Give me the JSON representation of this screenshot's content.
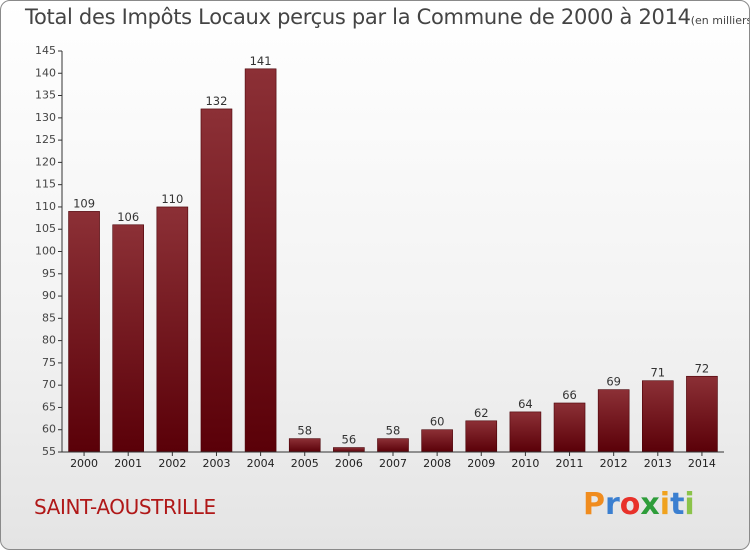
{
  "title": "Total des Impôts Locaux perçus par la Commune de 2000 à 2014",
  "unit_note": "(en milliers d'€)",
  "commune": "SAINT-AOUSTRILLE",
  "logo": {
    "letters": [
      "P",
      "r",
      "o",
      "x",
      "i",
      "t",
      "i"
    ],
    "colors": [
      "#f08c1e",
      "#3b7fd0",
      "#e8312a",
      "#2e9d3a",
      "#f0a21e",
      "#3b7fd0",
      "#8bc34a"
    ]
  },
  "colors": {
    "bar_top": "#8c3036",
    "bar_bottom": "#5a0008",
    "commune_text": "#b01818"
  },
  "chart_data": {
    "type": "bar",
    "title": "Total des Impôts Locaux perçus par la Commune de 2000 à 2014",
    "categories": [
      "2000",
      "2001",
      "2002",
      "2003",
      "2004",
      "2005",
      "2006",
      "2007",
      "2008",
      "2009",
      "2010",
      "2011",
      "2012",
      "2013",
      "2014"
    ],
    "values": [
      109,
      106,
      110,
      132,
      141,
      58,
      56,
      58,
      60,
      62,
      64,
      66,
      69,
      71,
      72
    ],
    "ylim": [
      55,
      145
    ],
    "yticks": [
      55,
      60,
      65,
      70,
      75,
      80,
      85,
      90,
      95,
      100,
      105,
      110,
      115,
      120,
      125,
      130,
      135,
      140,
      145
    ],
    "grid": false,
    "legend": "none"
  }
}
